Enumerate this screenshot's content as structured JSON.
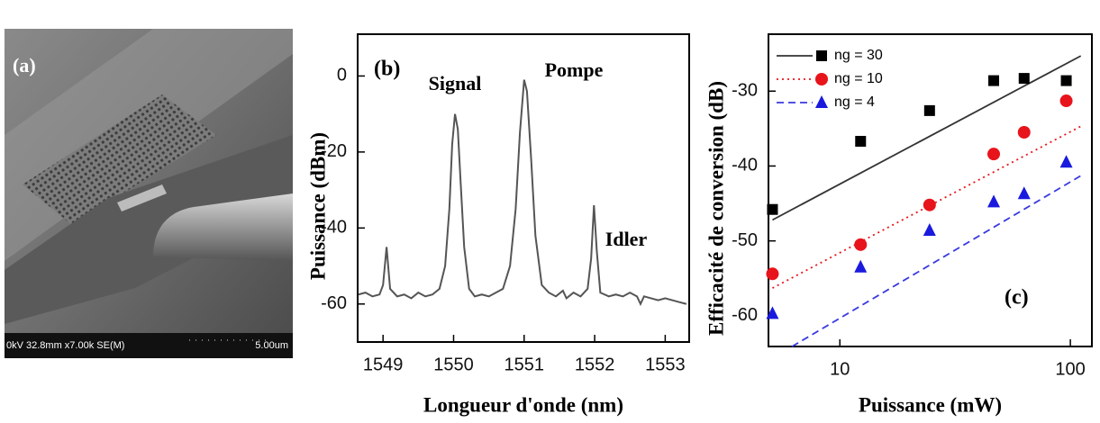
{
  "panel_a": {
    "label": "(a)",
    "scale_info": "0kV 32.8mm x7.00k SE(M)",
    "scale_bar": "5.00um"
  },
  "chart_data": [
    {
      "type": "line",
      "panel_label": "(b)",
      "xlabel": "Longueur d'onde (nm)",
      "ylabel": "Puissance (dBm)",
      "annotations": [
        "Signal",
        "Pompe",
        "Idler"
      ],
      "xlim": [
        1548.64,
        1553.34
      ],
      "ylim": [
        -70,
        11
      ],
      "xticks": [
        1549,
        1550,
        1551,
        1552,
        1553
      ],
      "yticks": [
        -60,
        -40,
        -20,
        0
      ],
      "x": [
        1548.65,
        1548.75,
        1548.85,
        1548.95,
        1549.0,
        1549.05,
        1549.1,
        1549.2,
        1549.3,
        1549.4,
        1549.5,
        1549.6,
        1549.7,
        1549.8,
        1549.88,
        1549.94,
        1549.98,
        1550.02,
        1550.06,
        1550.1,
        1550.15,
        1550.22,
        1550.3,
        1550.4,
        1550.5,
        1550.6,
        1550.7,
        1550.8,
        1550.88,
        1550.94,
        1551.0,
        1551.04,
        1551.1,
        1551.16,
        1551.25,
        1551.35,
        1551.45,
        1551.55,
        1551.6,
        1551.7,
        1551.8,
        1551.9,
        1551.95,
        1551.99,
        1552.03,
        1552.08,
        1552.2,
        1552.3,
        1552.4,
        1552.5,
        1552.6,
        1552.65,
        1552.7,
        1552.8,
        1552.9,
        1553.0,
        1553.1,
        1553.2,
        1553.3
      ],
      "series": [
        {
          "color": "#555555",
          "values": [
            -57.5,
            -57,
            -58,
            -57.5,
            -55,
            -45,
            -56,
            -58,
            -57.5,
            -58.5,
            -57,
            -58,
            -57.5,
            -56,
            -50,
            -35,
            -18,
            -10,
            -14,
            -28,
            -45,
            -56,
            -58,
            -57.5,
            -58,
            -57,
            -56,
            -50,
            -35,
            -15,
            -1,
            -4,
            -22,
            -42,
            -55,
            -57,
            -58,
            -56.5,
            -58.5,
            -57,
            -58,
            -56,
            -48,
            -34,
            -46,
            -57,
            -58,
            -57.5,
            -58,
            -57,
            -58,
            -60,
            -58,
            -58.5,
            -59,
            -58.5,
            -59,
            -59.5,
            -60
          ]
        }
      ]
    },
    {
      "type": "scatter",
      "panel_label": "(c)",
      "xlabel": "Puissance (mW)",
      "ylabel": "Efficacité de conversion (dB)",
      "log_x": true,
      "xlim": [
        4.9,
        124
      ],
      "ylim": [
        -64.1,
        -22.4
      ],
      "xticks": [
        10,
        100
      ],
      "yticks": [
        -60,
        -50,
        -40,
        -30
      ],
      "series": [
        {
          "name": "ng = 30",
          "color": "#000000",
          "marker": "square",
          "x": [
            5.1,
            12.3,
            24.5,
            46.5,
            63,
            96
          ],
          "values": [
            -45.8,
            -36.7,
            -32.6,
            -28.6,
            -28.3,
            -28.6
          ],
          "fit": {
            "dash": "solid",
            "color": "#333333",
            "x": [
              5.1,
              111
            ],
            "values": [
              -47.2,
              -25.3
            ]
          }
        },
        {
          "name": "ng = 10",
          "color": "#e8141b",
          "marker": "circle",
          "x": [
            5.1,
            12.3,
            24.5,
            46.5,
            63,
            96
          ],
          "values": [
            -54.4,
            -50.5,
            -45.2,
            -38.4,
            -35.5,
            -31.3
          ],
          "fit": {
            "dash": "dotted",
            "color": "#e8141b",
            "x": [
              5.1,
              111
            ],
            "values": [
              -56.3,
              -34.7
            ]
          }
        },
        {
          "name": "ng = 4",
          "color": "#1a1adf",
          "marker": "triangle",
          "x": [
            5.1,
            12.3,
            24.5,
            46.5,
            63,
            96
          ],
          "values": [
            -59.7,
            -53.5,
            -48.6,
            -44.8,
            -43.7,
            -39.5
          ],
          "fit": {
            "dash": "dashed",
            "color": "#3a3ae0",
            "x": [
              6.2,
              111
            ],
            "values": [
              -64.1,
              -41.3
            ]
          }
        }
      ]
    }
  ]
}
